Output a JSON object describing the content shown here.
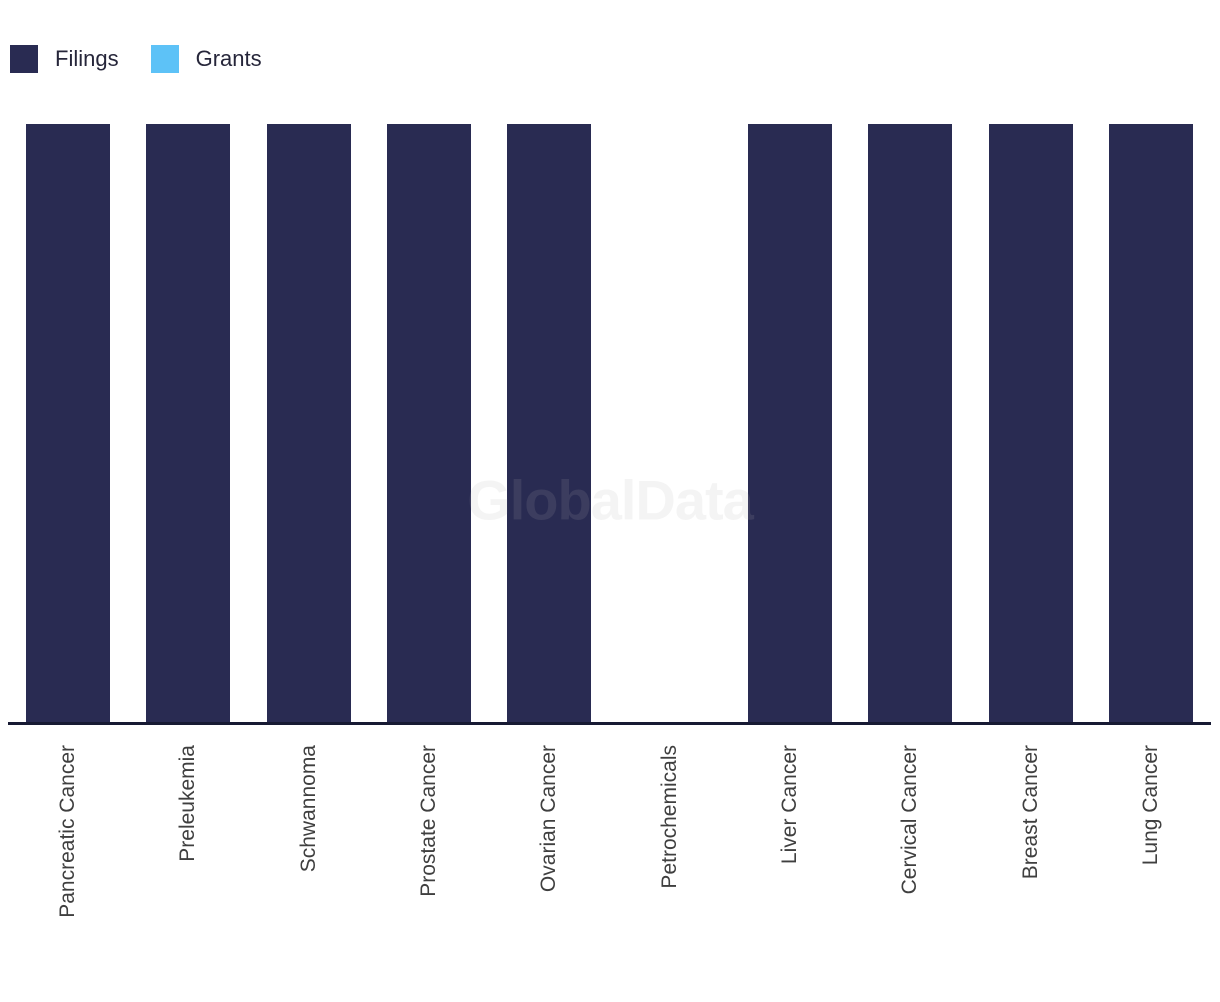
{
  "legend": {
    "items": [
      {
        "label": "Filings",
        "color": "#292b52"
      },
      {
        "label": "Grants",
        "color": "#5dc2f7"
      }
    ]
  },
  "watermark": "GlobalData",
  "chart_data": {
    "type": "bar",
    "categories": [
      "Pancreatic Cancer",
      "Preleukemia",
      "Schwannoma",
      "Prostate Cancer",
      "Ovarian Cancer",
      "Petrochemicals",
      "Liver Cancer",
      "Cervical Cancer",
      "Breast Cancer",
      "Lung Cancer"
    ],
    "series": [
      {
        "name": "Filings",
        "color": "#292b52",
        "values": [
          1,
          1,
          1,
          1,
          1,
          0,
          1,
          1,
          1,
          1
        ]
      },
      {
        "name": "Grants",
        "color": "#5dc2f7",
        "values": [
          0,
          0,
          0,
          0,
          0,
          0,
          0,
          0,
          0,
          0
        ]
      }
    ],
    "title": "",
    "xlabel": "",
    "ylabel": "",
    "ylim": [
      0,
      1
    ],
    "grid": false,
    "y_axis_visible": false,
    "legend_position": "top-left",
    "axis_line_color": "#171a33",
    "label_color": "#3f3f3f",
    "x_label_rotation": -90
  }
}
